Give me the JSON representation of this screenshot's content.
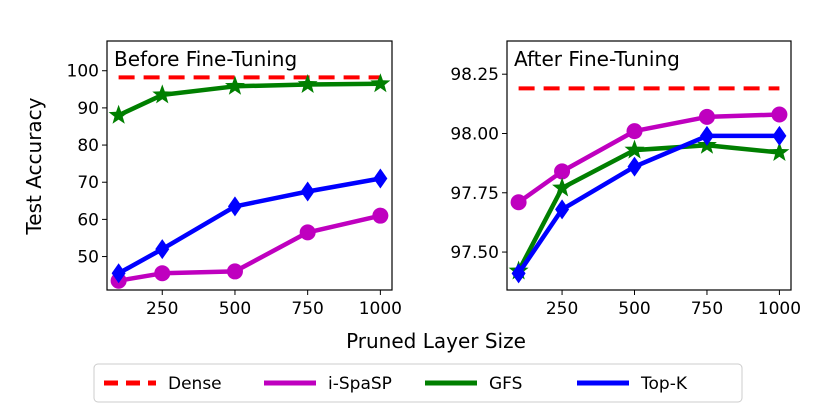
{
  "figure": {
    "ylabel": "Test Accuracy",
    "xlabel": "Pruned Layer Size"
  },
  "legend": {
    "position": "bottom",
    "entries": [
      {
        "name": "Dense",
        "color": "#ff0000",
        "style": "dashed"
      },
      {
        "name": "i-SpaSP",
        "color": "#bf00bf",
        "style": "solid"
      },
      {
        "name": "GFS",
        "color": "#007f00",
        "style": "solid"
      },
      {
        "name": "Top-K",
        "color": "#0000ff",
        "style": "solid"
      }
    ]
  },
  "chart_data": [
    {
      "type": "line",
      "title": "Before Fine-Tuning",
      "xlabel": "Pruned Layer Size",
      "ylabel": "Test Accuracy",
      "x": [
        100,
        250,
        500,
        750,
        1000
      ],
      "xlim": [
        60,
        1040
      ],
      "ylim": [
        41,
        108
      ],
      "xticks": [
        250,
        500,
        750,
        1000
      ],
      "yticks": [
        50,
        60,
        70,
        80,
        90,
        100
      ],
      "ytick_labels": [
        "50",
        "60",
        "70",
        "80",
        "90",
        "100"
      ],
      "series": [
        {
          "name": "Dense",
          "color": "#ff0000",
          "style": "dashed",
          "marker": "none",
          "values": [
            98.2,
            98.2,
            98.2,
            98.2,
            98.2
          ]
        },
        {
          "name": "i-SpaSP",
          "color": "#bf00bf",
          "style": "solid",
          "marker": "circle",
          "values": [
            43.5,
            45.5,
            46.0,
            56.5,
            61.0
          ]
        },
        {
          "name": "GFS",
          "color": "#007f00",
          "style": "solid",
          "marker": "star",
          "values": [
            88.0,
            93.5,
            95.8,
            96.3,
            96.5
          ]
        },
        {
          "name": "Top-K",
          "color": "#0000ff",
          "style": "solid",
          "marker": "diamond",
          "values": [
            45.5,
            52.0,
            63.5,
            67.5,
            71.0
          ]
        }
      ]
    },
    {
      "type": "line",
      "title": "After Fine-Tuning",
      "xlabel": "Pruned Layer Size",
      "ylabel": "",
      "x": [
        100,
        250,
        500,
        750,
        1000
      ],
      "xlim": [
        60,
        1040
      ],
      "ylim": [
        97.34,
        98.39
      ],
      "xticks": [
        250,
        500,
        750,
        1000
      ],
      "yticks": [
        97.5,
        97.75,
        98.0,
        98.25
      ],
      "ytick_labels": [
        "97.50",
        "97.75",
        "98.00",
        "98.25"
      ],
      "series": [
        {
          "name": "Dense",
          "color": "#ff0000",
          "style": "dashed",
          "marker": "none",
          "values": [
            98.19,
            98.19,
            98.19,
            98.19,
            98.19
          ]
        },
        {
          "name": "i-SpaSP",
          "color": "#bf00bf",
          "style": "solid",
          "marker": "circle",
          "values": [
            97.71,
            97.84,
            98.01,
            98.07,
            98.08
          ]
        },
        {
          "name": "GFS",
          "color": "#007f00",
          "style": "solid",
          "marker": "star",
          "values": [
            97.42,
            97.77,
            97.93,
            97.95,
            97.92
          ]
        },
        {
          "name": "Top-K",
          "color": "#0000ff",
          "style": "solid",
          "marker": "diamond",
          "values": [
            97.41,
            97.68,
            97.86,
            97.99,
            97.99
          ]
        }
      ]
    }
  ]
}
